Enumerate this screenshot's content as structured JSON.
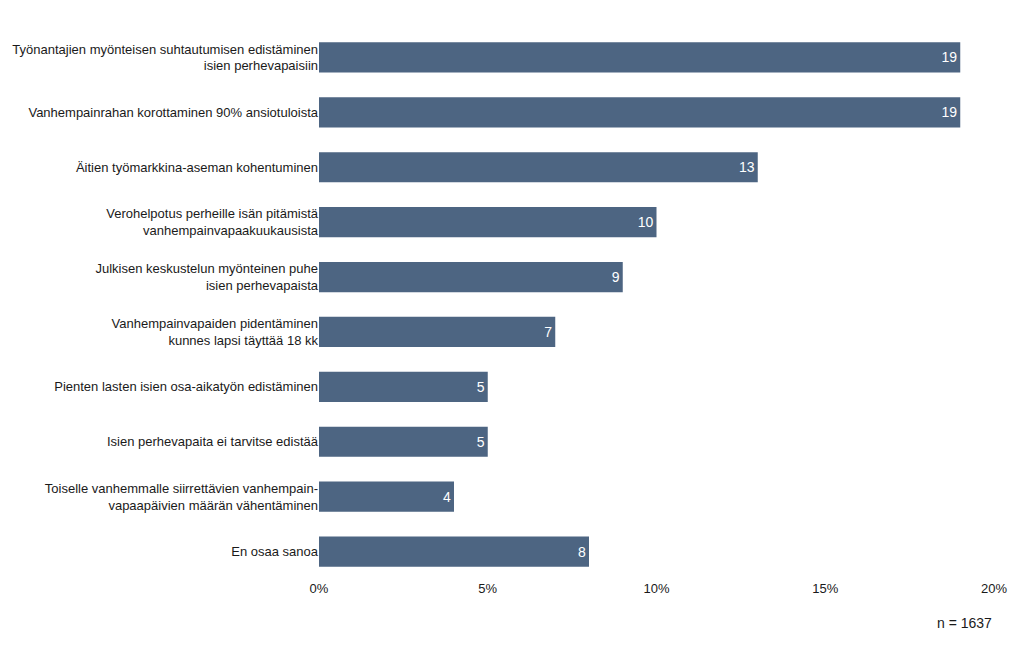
{
  "chart_data": {
    "type": "bar",
    "orientation": "horizontal",
    "categories": [
      "Työnantajien myönteisen suhtautumisen edistäminen\nisien perhevapaisiin",
      "Vanhempainrahan korottaminen 90% ansiotuloista",
      "Äitien työmarkkina-aseman kohentuminen",
      "Verohelpotus perheille isän pitämistä\nvanhempainvapaakuukausista",
      "Julkisen keskustelun myönteinen puhe\nisien perhevapaista",
      "Vanhempainvapaiden pidentäminen\nkunnes lapsi täyttää 18 kk",
      "Pienten lasten isien osa-aikatyön edistäminen",
      "Isien perhevapaita ei tarvitse edistää",
      "Toiselle vanhemmalle siirrettävien vanhempain-\nvapaapäivien määrän vähentäminen",
      "En osaa sanoa"
    ],
    "values": [
      19,
      19,
      13,
      10,
      9,
      7,
      5,
      5,
      4,
      8
    ],
    "color": "#4d6582",
    "data_labels": true,
    "xlim": [
      0,
      20
    ],
    "xticks": [
      {
        "value": 0,
        "label": "0%"
      },
      {
        "value": 5,
        "label": "5%"
      },
      {
        "value": 10,
        "label": "10%"
      },
      {
        "value": 15,
        "label": "15%"
      },
      {
        "value": 20,
        "label": "20%"
      }
    ],
    "grid": false,
    "annotations": [
      "n = 1637"
    ]
  }
}
